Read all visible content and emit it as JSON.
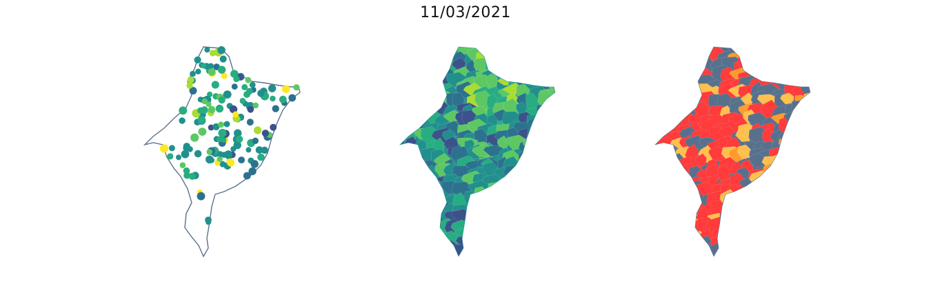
{
  "title": "11/03/2021",
  "colors": {
    "outline": "#5a718d",
    "viridis": [
      "#440154",
      "#3b528b",
      "#2c728e",
      "#21908d",
      "#27ad81",
      "#5dc863",
      "#aadc32",
      "#fde725"
    ],
    "classes": {
      "gray": "#57718d",
      "red": "#ff3b3b",
      "yellow": "#ffc04d",
      "orange": "#ff9a2e"
    }
  },
  "maps": [
    {
      "name": "point-map"
    },
    {
      "name": "choropleth-map"
    },
    {
      "name": "classified-map"
    }
  ]
}
